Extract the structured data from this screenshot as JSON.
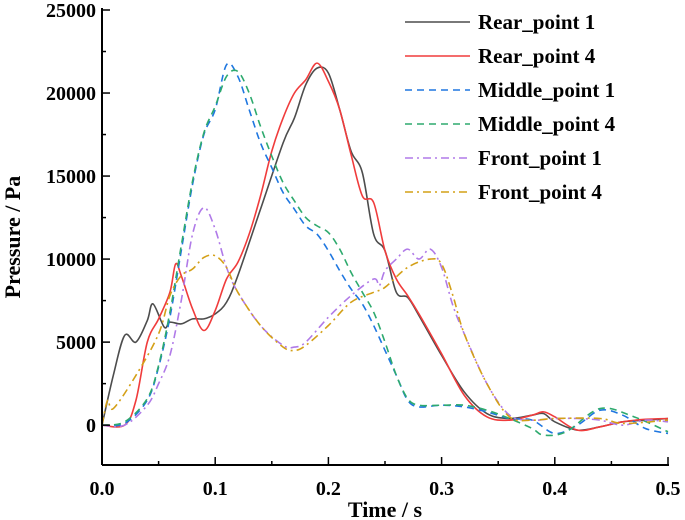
{
  "chart_data": {
    "type": "line",
    "title": "",
    "xlabel": "Time / s",
    "ylabel": "Pressure / Pa",
    "xlim": [
      0,
      0.5
    ],
    "ylim": [
      -2400,
      25000
    ],
    "xticks": [
      0.0,
      0.1,
      0.2,
      0.3,
      0.4,
      0.5
    ],
    "xtick_labels": [
      "0.0",
      "0.1",
      "0.2",
      "0.3",
      "0.4",
      "0.5"
    ],
    "yticks": [
      0,
      5000,
      10000,
      15000,
      20000,
      25000
    ],
    "ytick_labels": [
      "0",
      "5000",
      "10000",
      "15000",
      "20000",
      "25000"
    ],
    "grid": false,
    "legend_position": "top-right",
    "series": [
      {
        "name": "Rear_point 1",
        "color": "#4d4d4d",
        "dash": "solid",
        "x": [
          0,
          0.01,
          0.02,
          0.03,
          0.04,
          0.045,
          0.055,
          0.06,
          0.07,
          0.08,
          0.09,
          0.1,
          0.11,
          0.12,
          0.14,
          0.16,
          0.17,
          0.18,
          0.19,
          0.2,
          0.21,
          0.22,
          0.23,
          0.24,
          0.25,
          0.26,
          0.27,
          0.28,
          0.3,
          0.32,
          0.34,
          0.36,
          0.38,
          0.39,
          0.4,
          0.42,
          0.44,
          0.46,
          0.48,
          0.5
        ],
        "y": [
          0,
          3000,
          5400,
          5000,
          6300,
          7300,
          5900,
          6200,
          6100,
          6400,
          6400,
          6700,
          7400,
          9000,
          13000,
          17000,
          18500,
          20500,
          21500,
          21200,
          19000,
          16500,
          15200,
          11500,
          10500,
          8000,
          7700,
          6600,
          4200,
          2000,
          700,
          400,
          600,
          700,
          200,
          -300,
          -100,
          200,
          300,
          400
        ]
      },
      {
        "name": "Rear_point 4",
        "color": "#f03c3c",
        "dash": "solid",
        "x": [
          0,
          0.02,
          0.03,
          0.04,
          0.05,
          0.06,
          0.065,
          0.07,
          0.08,
          0.09,
          0.1,
          0.11,
          0.12,
          0.13,
          0.14,
          0.15,
          0.16,
          0.17,
          0.18,
          0.19,
          0.2,
          0.21,
          0.22,
          0.23,
          0.24,
          0.25,
          0.26,
          0.27,
          0.28,
          0.3,
          0.32,
          0.34,
          0.36,
          0.38,
          0.39,
          0.4,
          0.42,
          0.44,
          0.46,
          0.48,
          0.5
        ],
        "y": [
          0,
          0,
          1500,
          5000,
          6400,
          8000,
          9700,
          9000,
          7000,
          5700,
          6900,
          8800,
          9800,
          11500,
          13800,
          16500,
          18500,
          20000,
          20800,
          21800,
          20700,
          19000,
          16300,
          13800,
          13400,
          10500,
          8800,
          7800,
          6700,
          4300,
          1800,
          500,
          300,
          600,
          800,
          500,
          -300,
          -100,
          200,
          350,
          400
        ]
      },
      {
        "name": "Middle_point 1",
        "color": "#1f77e0",
        "dash": "dashed",
        "x": [
          0,
          0.02,
          0.04,
          0.05,
          0.06,
          0.07,
          0.08,
          0.09,
          0.1,
          0.11,
          0.12,
          0.13,
          0.14,
          0.15,
          0.16,
          0.17,
          0.18,
          0.19,
          0.2,
          0.21,
          0.22,
          0.23,
          0.24,
          0.25,
          0.26,
          0.27,
          0.28,
          0.3,
          0.32,
          0.34,
          0.36,
          0.38,
          0.4,
          0.42,
          0.44,
          0.46,
          0.48,
          0.5
        ],
        "y": [
          0,
          100,
          1500,
          3500,
          6500,
          10500,
          14500,
          17500,
          19000,
          21700,
          21000,
          19000,
          17000,
          15500,
          14000,
          13000,
          12000,
          11500,
          10500,
          9300,
          8200,
          7300,
          6000,
          4500,
          3000,
          1500,
          1100,
          1200,
          1100,
          800,
          400,
          300,
          -500,
          0,
          900,
          600,
          -200,
          -500
        ]
      },
      {
        "name": "Middle_point 4",
        "color": "#2eaa6e",
        "dash": "dashed",
        "x": [
          0,
          0.02,
          0.04,
          0.05,
          0.06,
          0.07,
          0.08,
          0.09,
          0.1,
          0.11,
          0.12,
          0.13,
          0.14,
          0.15,
          0.16,
          0.17,
          0.18,
          0.19,
          0.2,
          0.21,
          0.22,
          0.23,
          0.24,
          0.25,
          0.26,
          0.27,
          0.28,
          0.3,
          0.32,
          0.34,
          0.36,
          0.38,
          0.39,
          0.41,
          0.44,
          0.47,
          0.5
        ],
        "y": [
          0,
          200,
          1600,
          3600,
          6800,
          10800,
          14700,
          17600,
          19200,
          21000,
          21300,
          20000,
          18000,
          16200,
          14600,
          13500,
          12500,
          12000,
          11600,
          10600,
          9200,
          8000,
          6800,
          5000,
          3000,
          1600,
          1200,
          1200,
          1200,
          900,
          400,
          -200,
          -600,
          -400,
          1000,
          500,
          -400
        ]
      },
      {
        "name": "Front_point 1",
        "color": "#b07ae8",
        "dash": "dashdot",
        "x": [
          0,
          0.02,
          0.04,
          0.05,
          0.06,
          0.07,
          0.08,
          0.09,
          0.1,
          0.11,
          0.12,
          0.14,
          0.16,
          0.17,
          0.18,
          0.2,
          0.22,
          0.24,
          0.245,
          0.25,
          0.26,
          0.27,
          0.28,
          0.29,
          0.3,
          0.31,
          0.32,
          0.34,
          0.36,
          0.38,
          0.4,
          0.42,
          0.44,
          0.46,
          0.48,
          0.5
        ],
        "y": [
          0,
          0,
          1200,
          2500,
          4200,
          7500,
          11500,
          13100,
          11800,
          9500,
          8000,
          6000,
          4800,
          4700,
          5000,
          6500,
          7800,
          8800,
          8400,
          9300,
          10000,
          10600,
          10000,
          10600,
          9500,
          7200,
          5500,
          2500,
          600,
          300,
          400,
          400,
          300,
          0,
          300,
          200
        ]
      },
      {
        "name": "Front_point 4",
        "color": "#d4a017",
        "dash": "dashdot",
        "x": [
          0,
          0.005,
          0.01,
          0.03,
          0.05,
          0.06,
          0.07,
          0.08,
          0.09,
          0.1,
          0.11,
          0.12,
          0.14,
          0.16,
          0.17,
          0.18,
          0.2,
          0.22,
          0.24,
          0.25,
          0.27,
          0.29,
          0.3,
          0.31,
          0.32,
          0.34,
          0.36,
          0.38,
          0.4,
          0.44,
          0.46,
          0.5
        ],
        "y": [
          0,
          1500,
          1000,
          3000,
          5500,
          7800,
          9000,
          9400,
          10100,
          10200,
          9500,
          8000,
          6000,
          4700,
          4500,
          4800,
          6000,
          7400,
          8000,
          8300,
          9500,
          10000,
          9700,
          7800,
          5500,
          2500,
          500,
          300,
          400,
          400,
          100,
          300
        ]
      }
    ]
  }
}
